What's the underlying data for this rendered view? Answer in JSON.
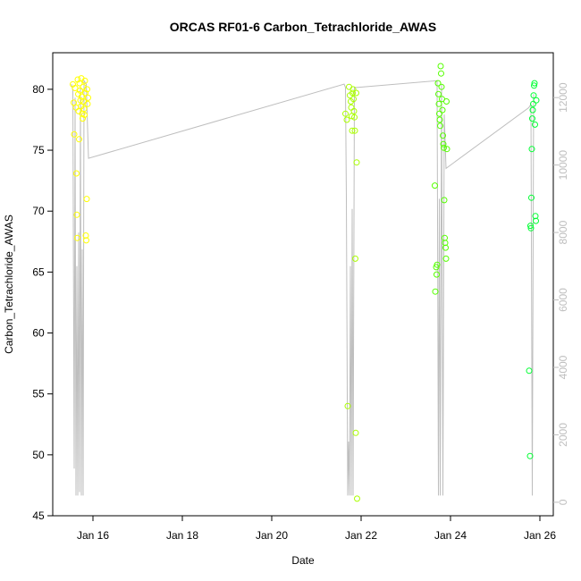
{
  "chart_data": {
    "type": "scatter",
    "title": "ORCAS RF01-6 Carbon_Tetrachloride_AWAS",
    "xlabel": "Date",
    "ylabel": "Carbon_Tetrachloride_AWAS",
    "x_ticks": [
      "Jan 16",
      "Jan 18",
      "Jan 20",
      "Jan 22",
      "Jan 24",
      "Jan 26"
    ],
    "x_tick_days": [
      16,
      18,
      20,
      22,
      24,
      26
    ],
    "xlim": [
      15.1,
      26.3
    ],
    "ylim": [
      45,
      83
    ],
    "y_ticks": [
      45,
      50,
      55,
      60,
      65,
      70,
      75,
      80
    ],
    "y2_ticks": [
      0,
      2000,
      4000,
      6000,
      8000,
      10000,
      12000
    ],
    "y2lim": [
      -400,
      13330
    ],
    "grid": false,
    "series": [
      {
        "color": "#ffff00",
        "marker": "open-circle",
        "points": [
          [
            15.55,
            80.4
          ],
          [
            15.57,
            78.9
          ],
          [
            15.58,
            76.3
          ],
          [
            15.6,
            80.1
          ],
          [
            15.62,
            78.5
          ],
          [
            15.63,
            73.1
          ],
          [
            15.64,
            69.7
          ],
          [
            15.65,
            67.8
          ],
          [
            15.66,
            80.8
          ],
          [
            15.67,
            79.6
          ],
          [
            15.68,
            78.2
          ],
          [
            15.69,
            75.9
          ],
          [
            15.7,
            80.5
          ],
          [
            15.71,
            79.9
          ],
          [
            15.72,
            79.1
          ],
          [
            15.73,
            78.6
          ],
          [
            15.74,
            80.9
          ],
          [
            15.75,
            79.4
          ],
          [
            15.76,
            78.0
          ],
          [
            15.77,
            77.6
          ],
          [
            15.78,
            80.2
          ],
          [
            15.79,
            79.0
          ],
          [
            15.8,
            78.4
          ],
          [
            15.81,
            77.9
          ],
          [
            15.82,
            80.7
          ],
          [
            15.83,
            79.7
          ],
          [
            15.84,
            68.0
          ],
          [
            15.85,
            67.6
          ],
          [
            15.86,
            71.0
          ],
          [
            15.87,
            80.0
          ],
          [
            15.88,
            78.8
          ],
          [
            15.89,
            79.3
          ]
        ]
      },
      {
        "color": "#aaff00",
        "marker": "open-circle",
        "points": [
          [
            21.65,
            78.0
          ],
          [
            21.68,
            77.5
          ],
          [
            21.7,
            54.0
          ],
          [
            21.73,
            80.2
          ],
          [
            21.75,
            79.5
          ],
          [
            21.77,
            79.0
          ],
          [
            21.78,
            78.5
          ],
          [
            21.79,
            77.8
          ],
          [
            21.8,
            76.6
          ],
          [
            21.81,
            79.7
          ],
          [
            21.82,
            80.0
          ],
          [
            21.83,
            79.2
          ],
          [
            21.84,
            78.2
          ],
          [
            21.85,
            77.7
          ],
          [
            21.86,
            76.6
          ],
          [
            21.87,
            66.1
          ],
          [
            21.88,
            51.8
          ],
          [
            21.89,
            79.7
          ],
          [
            21.9,
            74.0
          ],
          [
            21.91,
            46.4
          ]
        ]
      },
      {
        "color": "#55ff00",
        "marker": "open-circle",
        "points": [
          [
            23.65,
            72.1
          ],
          [
            23.66,
            63.4
          ],
          [
            23.68,
            65.4
          ],
          [
            23.69,
            64.8
          ],
          [
            23.7,
            65.6
          ],
          [
            23.72,
            80.5
          ],
          [
            23.73,
            79.6
          ],
          [
            23.74,
            78.8
          ],
          [
            23.75,
            78.0
          ],
          [
            23.76,
            77.5
          ],
          [
            23.77,
            77.0
          ],
          [
            23.78,
            81.9
          ],
          [
            23.79,
            81.3
          ],
          [
            23.8,
            80.2
          ],
          [
            23.81,
            79.2
          ],
          [
            23.82,
            78.3
          ],
          [
            23.83,
            76.2
          ],
          [
            23.84,
            75.5
          ],
          [
            23.85,
            75.2
          ],
          [
            23.86,
            70.9
          ],
          [
            23.87,
            67.8
          ],
          [
            23.88,
            67.4
          ],
          [
            23.89,
            67.0
          ],
          [
            23.9,
            66.1
          ],
          [
            23.91,
            79.0
          ],
          [
            23.92,
            75.1
          ]
        ]
      },
      {
        "color": "#00ff33",
        "marker": "open-circle",
        "points": [
          [
            25.76,
            56.9
          ],
          [
            25.78,
            49.9
          ],
          [
            25.79,
            68.8
          ],
          [
            25.8,
            68.6
          ],
          [
            25.81,
            71.1
          ],
          [
            25.82,
            75.1
          ],
          [
            25.83,
            77.6
          ],
          [
            25.84,
            78.3
          ],
          [
            25.85,
            78.8
          ],
          [
            25.86,
            79.5
          ],
          [
            25.87,
            80.3
          ],
          [
            25.88,
            80.5
          ],
          [
            25.89,
            77.1
          ],
          [
            25.9,
            69.6
          ],
          [
            25.91,
            69.2
          ],
          [
            25.92,
            79.1
          ]
        ]
      }
    ],
    "altitude_series": {
      "color": "#bebebe",
      "axis": "right",
      "points": [
        [
          15.52,
          12400
        ],
        [
          15.55,
          12200
        ],
        [
          15.58,
          1000
        ],
        [
          15.6,
          12000
        ],
        [
          15.62,
          200
        ],
        [
          15.64,
          7000
        ],
        [
          15.66,
          200
        ],
        [
          15.68,
          8000
        ],
        [
          15.7,
          300
        ],
        [
          15.72,
          12300
        ],
        [
          15.74,
          200
        ],
        [
          15.76,
          7500
        ],
        [
          15.78,
          200
        ],
        [
          15.8,
          12500
        ],
        [
          15.85,
          12400
        ],
        [
          15.9,
          10200
        ],
        [
          21.62,
          12400
        ],
        [
          21.65,
          12300
        ],
        [
          21.67,
          9000
        ],
        [
          21.7,
          200
        ],
        [
          21.72,
          1800
        ],
        [
          21.74,
          200
        ],
        [
          21.76,
          7000
        ],
        [
          21.78,
          200
        ],
        [
          21.8,
          8700
        ],
        [
          21.82,
          200
        ],
        [
          21.85,
          12300
        ],
        [
          21.9,
          12300
        ],
        [
          23.7,
          12500
        ],
        [
          23.73,
          200
        ],
        [
          23.75,
          9000
        ],
        [
          23.77,
          200
        ],
        [
          23.8,
          12400
        ],
        [
          23.83,
          200
        ],
        [
          23.86,
          11500
        ],
        [
          23.9,
          9900
        ],
        [
          25.75,
          11700
        ],
        [
          25.8,
          11800
        ],
        [
          25.83,
          200
        ],
        [
          25.86,
          12100
        ]
      ]
    }
  }
}
